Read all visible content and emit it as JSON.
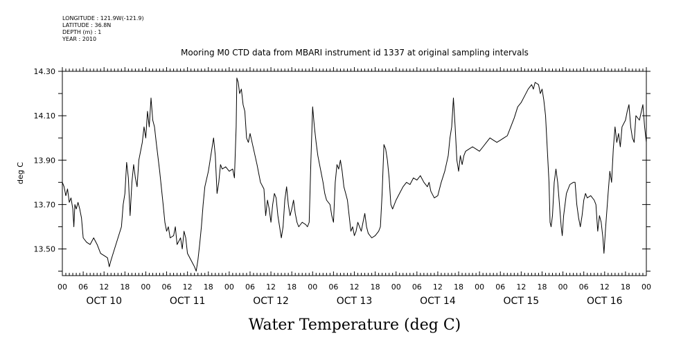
{
  "meta": {
    "longitude": "LONGITUDE : 121.9W(-121.9)",
    "latitude": "LATITUDE : 36.8N",
    "depth": "DEPTH (m) : 1",
    "year": "YEAR : 2010"
  },
  "chart_data": {
    "type": "line",
    "title": "Mooring M0 CTD data from MBARI instrument id 1337 at original sampling intervals",
    "xlabel": "Water Temperature (deg C)",
    "ylabel": "deg C",
    "ylim": [
      13.38,
      14.3
    ],
    "yticks": [
      13.5,
      13.7,
      13.9,
      14.1,
      14.3
    ],
    "ytick_labels": [
      "13.50",
      "13.70",
      "13.90",
      "14.10",
      "14.30"
    ],
    "hour_tick_labels": [
      "00",
      "06",
      "12",
      "18",
      "00",
      "06",
      "12",
      "18",
      "00",
      "06",
      "12",
      "18",
      "00",
      "06",
      "12",
      "18",
      "00",
      "06",
      "12",
      "18",
      "00",
      "06",
      "12",
      "18",
      "00",
      "06",
      "12",
      "18",
      "00"
    ],
    "day_labels": [
      "OCT 10",
      "OCT 11",
      "OCT 12",
      "OCT 13",
      "OCT 14",
      "OCT 15",
      "OCT 16"
    ],
    "xlim_hours": [
      0,
      168
    ],
    "grid": false,
    "series": [
      {
        "color": "#000000",
        "points": [
          [
            0,
            13.8
          ],
          [
            0.5,
            13.78
          ],
          [
            1,
            13.74
          ],
          [
            1.5,
            13.77
          ],
          [
            2,
            13.71
          ],
          [
            2.5,
            13.73
          ],
          [
            3,
            13.68
          ],
          [
            3.3,
            13.6
          ],
          [
            3.6,
            13.7
          ],
          [
            4,
            13.68
          ],
          [
            4.5,
            13.71
          ],
          [
            5,
            13.68
          ],
          [
            5.5,
            13.64
          ],
          [
            6,
            13.55
          ],
          [
            7,
            13.53
          ],
          [
            8,
            13.52
          ],
          [
            9,
            13.55
          ],
          [
            10,
            13.52
          ],
          [
            11,
            13.48
          ],
          [
            12,
            13.47
          ],
          [
            13,
            13.46
          ],
          [
            13.5,
            13.42
          ],
          [
            14,
            13.45
          ],
          [
            15,
            13.5
          ],
          [
            16,
            13.55
          ],
          [
            17,
            13.6
          ],
          [
            17.5,
            13.7
          ],
          [
            18,
            13.75
          ],
          [
            18.5,
            13.89
          ],
          [
            19,
            13.82
          ],
          [
            19.5,
            13.65
          ],
          [
            20,
            13.8
          ],
          [
            20.5,
            13.88
          ],
          [
            21,
            13.82
          ],
          [
            21.5,
            13.78
          ],
          [
            22,
            13.9
          ],
          [
            23,
            13.98
          ],
          [
            23.5,
            14.05
          ],
          [
            24,
            14.0
          ],
          [
            24.5,
            14.12
          ],
          [
            25,
            14.05
          ],
          [
            25.5,
            14.18
          ],
          [
            26,
            14.08
          ],
          [
            26.5,
            14.05
          ],
          [
            27,
            13.98
          ],
          [
            28,
            13.85
          ],
          [
            29,
            13.7
          ],
          [
            29.5,
            13.62
          ],
          [
            30,
            13.58
          ],
          [
            30.5,
            13.6
          ],
          [
            31,
            13.55
          ],
          [
            32,
            13.56
          ],
          [
            32.5,
            13.6
          ],
          [
            33,
            13.52
          ],
          [
            34,
            13.55
          ],
          [
            34.5,
            13.5
          ],
          [
            35,
            13.58
          ],
          [
            35.5,
            13.55
          ],
          [
            36,
            13.48
          ],
          [
            37,
            13.45
          ],
          [
            38,
            13.42
          ],
          [
            38.5,
            13.4
          ],
          [
            39,
            13.45
          ],
          [
            39.5,
            13.52
          ],
          [
            40,
            13.6
          ],
          [
            40.5,
            13.7
          ],
          [
            41,
            13.78
          ],
          [
            42,
            13.85
          ],
          [
            43,
            13.95
          ],
          [
            43.5,
            14.0
          ],
          [
            44,
            13.92
          ],
          [
            44.5,
            13.75
          ],
          [
            45,
            13.8
          ],
          [
            45.5,
            13.88
          ],
          [
            46,
            13.86
          ],
          [
            47,
            13.87
          ],
          [
            48,
            13.85
          ],
          [
            49,
            13.86
          ],
          [
            49.5,
            13.82
          ],
          [
            50,
            14.05
          ],
          [
            50.2,
            14.27
          ],
          [
            50.6,
            14.25
          ],
          [
            51,
            14.2
          ],
          [
            51.5,
            14.22
          ],
          [
            52,
            14.15
          ],
          [
            52.5,
            14.12
          ],
          [
            53,
            14.0
          ],
          [
            53.5,
            13.98
          ],
          [
            54,
            14.02
          ],
          [
            55,
            13.95
          ],
          [
            56,
            13.88
          ],
          [
            57,
            13.8
          ],
          [
            58,
            13.77
          ],
          [
            58.5,
            13.65
          ],
          [
            59,
            13.72
          ],
          [
            59.5,
            13.68
          ],
          [
            60,
            13.62
          ],
          [
            60.5,
            13.7
          ],
          [
            61,
            13.75
          ],
          [
            61.5,
            13.73
          ],
          [
            62,
            13.65
          ],
          [
            63,
            13.55
          ],
          [
            63.5,
            13.6
          ],
          [
            64,
            13.72
          ],
          [
            64.5,
            13.78
          ],
          [
            65,
            13.7
          ],
          [
            65.5,
            13.65
          ],
          [
            66,
            13.68
          ],
          [
            66.5,
            13.72
          ],
          [
            67,
            13.66
          ],
          [
            67.5,
            13.62
          ],
          [
            68,
            13.6
          ],
          [
            69,
            13.62
          ],
          [
            70,
            13.61
          ],
          [
            70.5,
            13.6
          ],
          [
            71,
            13.62
          ],
          [
            71.5,
            13.9
          ],
          [
            72,
            14.14
          ],
          [
            72.5,
            14.05
          ],
          [
            73,
            13.98
          ],
          [
            73.5,
            13.92
          ],
          [
            74,
            13.88
          ],
          [
            75,
            13.8
          ],
          [
            75.5,
            13.75
          ],
          [
            76,
            13.72
          ],
          [
            77,
            13.7
          ],
          [
            77.5,
            13.65
          ],
          [
            78,
            13.62
          ],
          [
            78.5,
            13.8
          ],
          [
            79,
            13.88
          ],
          [
            79.5,
            13.86
          ],
          [
            80,
            13.9
          ],
          [
            80.5,
            13.85
          ],
          [
            81,
            13.78
          ],
          [
            81.5,
            13.75
          ],
          [
            82,
            13.72
          ],
          [
            82.5,
            13.65
          ],
          [
            83,
            13.58
          ],
          [
            83.5,
            13.6
          ],
          [
            84,
            13.56
          ],
          [
            84.5,
            13.58
          ],
          [
            85,
            13.62
          ],
          [
            86,
            13.58
          ],
          [
            86.5,
            13.62
          ],
          [
            87,
            13.66
          ],
          [
            87.5,
            13.6
          ],
          [
            88,
            13.57
          ],
          [
            89,
            13.55
          ],
          [
            90,
            13.56
          ],
          [
            91,
            13.58
          ],
          [
            91.5,
            13.6
          ],
          [
            92,
            13.75
          ],
          [
            92.5,
            13.97
          ],
          [
            93,
            13.95
          ],
          [
            93.5,
            13.9
          ],
          [
            94,
            13.82
          ],
          [
            94.5,
            13.7
          ],
          [
            95,
            13.68
          ],
          [
            96,
            13.72
          ],
          [
            97,
            13.75
          ],
          [
            98,
            13.78
          ],
          [
            99,
            13.8
          ],
          [
            100,
            13.79
          ],
          [
            101,
            13.82
          ],
          [
            102,
            13.81
          ],
          [
            103,
            13.83
          ],
          [
            104,
            13.8
          ],
          [
            105,
            13.78
          ],
          [
            105.5,
            13.8
          ],
          [
            106,
            13.76
          ],
          [
            107,
            13.73
          ],
          [
            108,
            13.74
          ],
          [
            109,
            13.8
          ],
          [
            110,
            13.85
          ],
          [
            111,
            13.92
          ],
          [
            111.5,
            14.0
          ],
          [
            112,
            14.05
          ],
          [
            112.5,
            14.18
          ],
          [
            113,
            14.05
          ],
          [
            113.5,
            13.9
          ],
          [
            114,
            13.85
          ],
          [
            114.5,
            13.92
          ],
          [
            115,
            13.88
          ],
          [
            115.5,
            13.92
          ],
          [
            116,
            13.94
          ],
          [
            117,
            13.95
          ],
          [
            118,
            13.96
          ],
          [
            119,
            13.95
          ],
          [
            120,
            13.94
          ],
          [
            121,
            13.96
          ],
          [
            122,
            13.98
          ],
          [
            123,
            14.0
          ],
          [
            124,
            13.99
          ],
          [
            125,
            13.98
          ],
          [
            126,
            13.99
          ],
          [
            127,
            14.0
          ],
          [
            128,
            14.01
          ],
          [
            129,
            14.05
          ],
          [
            130,
            14.09
          ],
          [
            131,
            14.14
          ],
          [
            132,
            14.16
          ],
          [
            133,
            14.19
          ],
          [
            134,
            14.22
          ],
          [
            135,
            14.24
          ],
          [
            135.5,
            14.22
          ],
          [
            136,
            14.25
          ],
          [
            137,
            14.24
          ],
          [
            137.5,
            14.2
          ],
          [
            138,
            14.22
          ],
          [
            138.5,
            14.17
          ],
          [
            139,
            14.1
          ],
          [
            139.5,
            13.95
          ],
          [
            140,
            13.8
          ],
          [
            140.3,
            13.62
          ],
          [
            140.6,
            13.6
          ],
          [
            141,
            13.65
          ],
          [
            141.5,
            13.8
          ],
          [
            142,
            13.86
          ],
          [
            142.5,
            13.8
          ],
          [
            143,
            13.7
          ],
          [
            143.5,
            13.6
          ],
          [
            143.8,
            13.56
          ],
          [
            144.2,
            13.65
          ],
          [
            145,
            13.75
          ],
          [
            146,
            13.79
          ],
          [
            147,
            13.8
          ],
          [
            147.5,
            13.8
          ],
          [
            148,
            13.7
          ],
          [
            148.5,
            13.64
          ],
          [
            149,
            13.6
          ],
          [
            149.5,
            13.65
          ],
          [
            150,
            13.72
          ],
          [
            150.5,
            13.75
          ],
          [
            151,
            13.73
          ],
          [
            152,
            13.74
          ],
          [
            153,
            13.72
          ],
          [
            153.5,
            13.7
          ],
          [
            154,
            13.58
          ],
          [
            154.5,
            13.65
          ],
          [
            155,
            13.62
          ],
          [
            155.5,
            13.55
          ],
          [
            155.8,
            13.48
          ],
          [
            156.3,
            13.6
          ],
          [
            157,
            13.75
          ],
          [
            157.5,
            13.85
          ],
          [
            158,
            13.8
          ],
          [
            158.5,
            13.95
          ],
          [
            159,
            14.05
          ],
          [
            159.5,
            13.98
          ],
          [
            160,
            14.02
          ],
          [
            160.5,
            13.96
          ],
          [
            161,
            14.05
          ],
          [
            162,
            14.08
          ],
          [
            162.5,
            14.12
          ],
          [
            163,
            14.15
          ],
          [
            163.5,
            14.05
          ],
          [
            164,
            14.0
          ],
          [
            164.5,
            13.98
          ],
          [
            165,
            14.1
          ],
          [
            166,
            14.08
          ],
          [
            167,
            14.15
          ],
          [
            167.5,
            14.05
          ],
          [
            168,
            13.98
          ]
        ]
      }
    ]
  }
}
